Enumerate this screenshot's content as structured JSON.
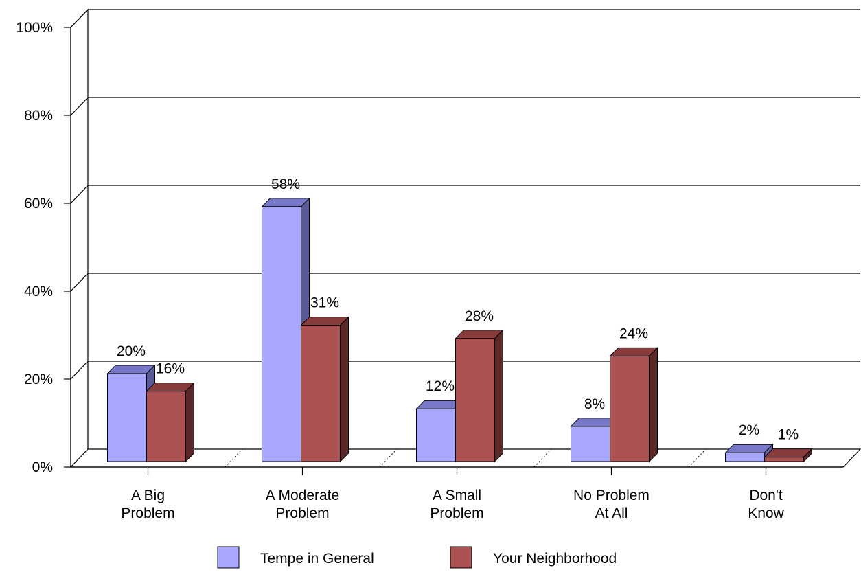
{
  "chart_data": {
    "type": "bar",
    "categories": [
      [
        "A Big",
        "Problem"
      ],
      [
        "A Moderate",
        "Problem"
      ],
      [
        "A Small",
        "Problem"
      ],
      [
        "No Problem",
        "At All"
      ],
      [
        "Don't",
        "Know"
      ]
    ],
    "series": [
      {
        "name": "Tempe in General",
        "values": [
          20,
          58,
          12,
          8,
          2
        ],
        "labels": [
          "20%",
          "58%",
          "12%",
          "8%",
          "2%"
        ],
        "color": "#a8a8ff",
        "top_color": "#7878c8",
        "side_color": "#5a5a96"
      },
      {
        "name": "Your Neighborhood",
        "values": [
          16,
          31,
          28,
          24,
          1
        ],
        "labels": [
          "16%",
          "31%",
          "28%",
          "24%",
          "1%"
        ],
        "color": "#ac5252",
        "top_color": "#8a3c3c",
        "side_color": "#5a2828"
      }
    ],
    "ylim": [
      0,
      100
    ],
    "yticks": [
      "0%",
      "20%",
      "40%",
      "60%",
      "80%",
      "100%"
    ],
    "grid": true,
    "legend": "bottom"
  }
}
